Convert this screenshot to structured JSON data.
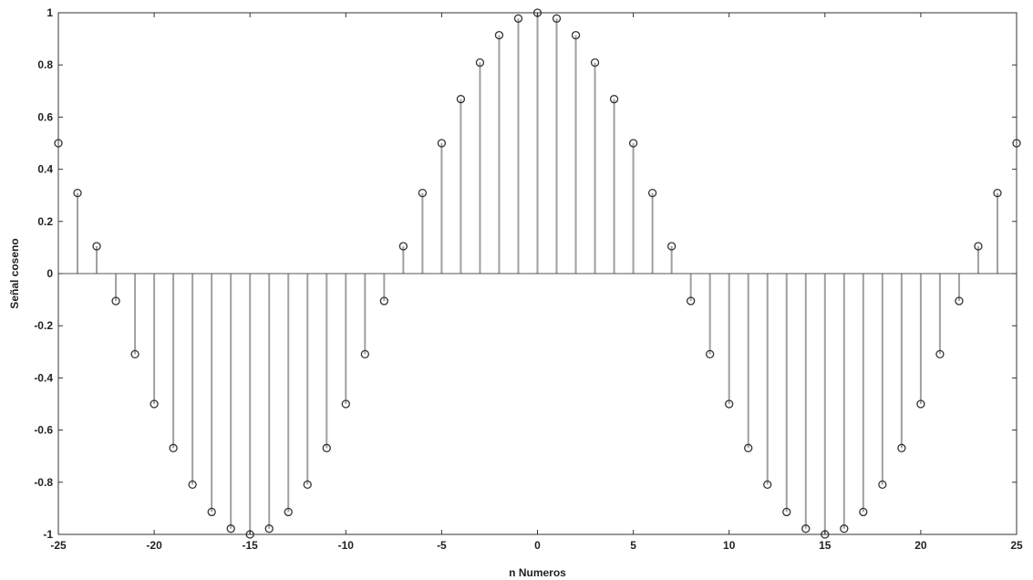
{
  "chart_data": {
    "type": "stem",
    "title": "",
    "xlabel": "n Numeros",
    "ylabel": "Señal coseno",
    "xlim": [
      -25,
      25
    ],
    "ylim": [
      -1,
      1
    ],
    "xticks": [
      "-25",
      "-20",
      "-15",
      "-10",
      "-5",
      "0",
      "5",
      "10",
      "15",
      "20",
      "25"
    ],
    "yticks": [
      "-1",
      "-0.8",
      "-0.6",
      "-0.4",
      "-0.2",
      "0",
      "0.2",
      "0.4",
      "0.6",
      "0.8",
      "1"
    ],
    "grid": false,
    "marker": "open-circle",
    "stem_color": "#a0a0a0",
    "marker_color": "#333333",
    "x": [
      -25,
      -24,
      -23,
      -22,
      -21,
      -20,
      -19,
      -18,
      -17,
      -16,
      -15,
      -14,
      -13,
      -12,
      -11,
      -10,
      -9,
      -8,
      -7,
      -6,
      -5,
      -4,
      -3,
      -2,
      -1,
      0,
      1,
      2,
      3,
      4,
      5,
      6,
      7,
      8,
      9,
      10,
      11,
      12,
      13,
      14,
      15,
      16,
      17,
      18,
      19,
      20,
      21,
      22,
      23,
      24,
      25
    ],
    "y": [
      0.5,
      0.309,
      0.105,
      -0.105,
      -0.309,
      -0.5,
      -0.669,
      -0.809,
      -0.914,
      -0.978,
      -1,
      -0.978,
      -0.914,
      -0.809,
      -0.669,
      -0.5,
      -0.309,
      -0.105,
      0.105,
      0.309,
      0.5,
      0.669,
      0.809,
      0.914,
      0.978,
      1,
      0.978,
      0.914,
      0.809,
      0.669,
      0.5,
      0.309,
      0.105,
      -0.105,
      -0.309,
      -0.5,
      -0.669,
      -0.809,
      -0.914,
      -0.978,
      -1,
      -0.978,
      -0.914,
      -0.809,
      -0.669,
      -0.5,
      -0.309,
      -0.105,
      0.105,
      0.309,
      0.5
    ]
  }
}
